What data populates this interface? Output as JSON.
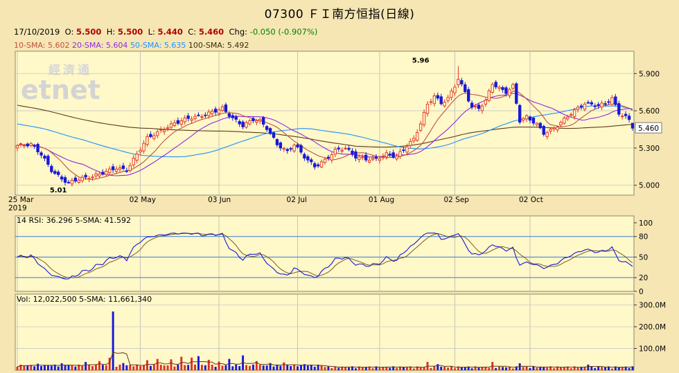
{
  "title": "07300 ＦＩ南方恒指(日線)",
  "ohlc": {
    "date": "17/10/2019",
    "open_label": "O:",
    "open": "5.500",
    "high_label": "H:",
    "high": "5.500",
    "low_label": "L:",
    "low": "5.440",
    "close_label": "C:",
    "close": "5.460",
    "chg_label": "Chg:",
    "chg": "-0.050 (-0.907%)"
  },
  "watermark": {
    "chinese": "經濟通",
    "latin": "etnet"
  },
  "colors": {
    "background": "#f6e6b4",
    "plot_bg": "#fff8c8",
    "up": "#e03020",
    "down": "#1818d8",
    "sma10": "#c05040",
    "sma20": "#8a2be2",
    "sma50": "#1e90ff",
    "sma100": "#5c3a1a",
    "rsi": "#1818d8",
    "rsi_sma": "#7a5a20"
  },
  "chart_data": [
    {
      "type": "candlestick",
      "x_ticks": [
        "25 Mar",
        "02 May",
        "03 Jun",
        "02 Jul",
        "01 Aug",
        "02 Sep",
        "02 Oct"
      ],
      "x_year": "2019",
      "y_ticks": [
        "5.900",
        "5.600",
        "5.300",
        "5.000"
      ],
      "ylim": [
        4.92,
        6.08
      ],
      "last_price_label": "5.460",
      "annotations": [
        {
          "text": "5.96",
          "category": "01 Aug",
          "offset_days": 12,
          "value": 5.96
        },
        {
          "text": "5.01",
          "category": "25 Mar",
          "offset_days": 12,
          "value": 5.01
        }
      ],
      "legend": [
        {
          "label": "10-SMA: 5.602",
          "color": "#c05040"
        },
        {
          "label": "20-SMA: 5.604",
          "color": "#8a2be2"
        },
        {
          "label": "50-SMA: 5.635",
          "color": "#1e90ff"
        },
        {
          "label": "100-SMA: 5.492",
          "color": "#5c3a1a"
        }
      ],
      "close_anchors": [
        [
          0,
          5.32
        ],
        [
          4,
          5.33
        ],
        [
          7,
          5.25
        ],
        [
          10,
          5.12
        ],
        [
          13,
          5.05
        ],
        [
          15,
          5.02
        ],
        [
          18,
          5.05
        ],
        [
          22,
          5.07
        ],
        [
          26,
          5.11
        ],
        [
          29,
          5.14
        ],
        [
          32,
          5.12
        ],
        [
          35,
          5.25
        ],
        [
          38,
          5.38
        ],
        [
          42,
          5.44
        ],
        [
          46,
          5.5
        ],
        [
          50,
          5.54
        ],
        [
          54,
          5.56
        ],
        [
          58,
          5.6
        ],
        [
          60,
          5.62
        ],
        [
          63,
          5.54
        ],
        [
          66,
          5.48
        ],
        [
          69,
          5.53
        ],
        [
          71,
          5.52
        ],
        [
          73,
          5.46
        ],
        [
          76,
          5.33
        ],
        [
          79,
          5.27
        ],
        [
          81,
          5.33
        ],
        [
          84,
          5.23
        ],
        [
          87,
          5.15
        ],
        [
          90,
          5.2
        ],
        [
          93,
          5.28
        ],
        [
          96,
          5.3
        ],
        [
          99,
          5.23
        ],
        [
          102,
          5.21
        ],
        [
          105,
          5.21
        ],
        [
          108,
          5.25
        ],
        [
          111,
          5.23
        ],
        [
          114,
          5.32
        ],
        [
          116,
          5.37
        ],
        [
          118,
          5.5
        ],
        [
          120,
          5.65
        ],
        [
          122,
          5.72
        ],
        [
          124,
          5.66
        ],
        [
          126,
          5.7
        ],
        [
          128,
          5.8
        ],
        [
          129,
          5.86
        ],
        [
          131,
          5.75
        ],
        [
          133,
          5.63
        ],
        [
          135,
          5.62
        ],
        [
          137,
          5.68
        ],
        [
          139,
          5.82
        ],
        [
          141,
          5.78
        ],
        [
          143,
          5.75
        ],
        [
          145,
          5.8
        ],
        [
          147,
          5.52
        ],
        [
          149,
          5.55
        ],
        [
          152,
          5.49
        ],
        [
          154,
          5.42
        ],
        [
          156,
          5.44
        ],
        [
          158,
          5.48
        ],
        [
          160,
          5.53
        ],
        [
          162,
          5.58
        ],
        [
          164,
          5.62
        ],
        [
          166,
          5.66
        ],
        [
          168,
          5.65
        ],
        [
          170,
          5.64
        ],
        [
          172,
          5.66
        ],
        [
          174,
          5.7
        ],
        [
          176,
          5.58
        ],
        [
          178,
          5.55
        ],
        [
          180,
          5.5
        ]
      ]
    },
    {
      "type": "line",
      "title": "14 RSI: 36.296  5-SMA: 41.592",
      "y_ticks": [
        100,
        80,
        50,
        20,
        0
      ],
      "ylim": [
        0,
        110
      ],
      "reference_lines": [
        80,
        50,
        20
      ]
    },
    {
      "type": "bar",
      "title": "Vol: 12,022,500  5-SMA: 11,661,340",
      "y_ticks": [
        "300.0M",
        "200.0M",
        "100.0M"
      ],
      "ylim": [
        0,
        350
      ],
      "y_unit": "M",
      "spike_values": [
        {
          "day": 6,
          "value": 30
        },
        {
          "day": 9,
          "value": 22
        },
        {
          "day": 13,
          "value": 32
        },
        {
          "day": 16,
          "value": 22
        },
        {
          "day": 20,
          "value": 38
        },
        {
          "day": 24,
          "value": 42
        },
        {
          "day": 27,
          "value": 58
        },
        {
          "day": 28,
          "value": 270
        },
        {
          "day": 31,
          "value": 33
        },
        {
          "day": 38,
          "value": 46
        },
        {
          "day": 41,
          "value": 52
        },
        {
          "day": 45,
          "value": 50
        },
        {
          "day": 48,
          "value": 62
        },
        {
          "day": 51,
          "value": 58
        },
        {
          "day": 53,
          "value": 65
        },
        {
          "day": 56,
          "value": 48
        },
        {
          "day": 59,
          "value": 40
        },
        {
          "day": 62,
          "value": 52
        },
        {
          "day": 66,
          "value": 68
        },
        {
          "day": 70,
          "value": 42
        },
        {
          "day": 74,
          "value": 33
        },
        {
          "day": 78,
          "value": 36
        },
        {
          "day": 84,
          "value": 28
        },
        {
          "day": 120,
          "value": 38
        },
        {
          "day": 123,
          "value": 28
        },
        {
          "day": 139,
          "value": 38
        },
        {
          "day": 147,
          "value": 32
        },
        {
          "day": 167,
          "value": 26
        }
      ]
    }
  ]
}
